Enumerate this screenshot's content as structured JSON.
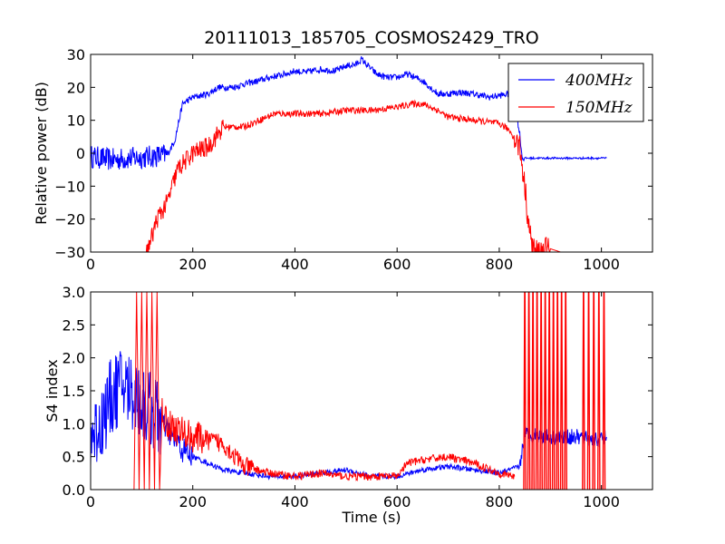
{
  "colors": {
    "series_400": "#0000ff",
    "series_150": "#ff0000",
    "axes": "#000000",
    "background": "#ffffff"
  },
  "chart_data": [
    {
      "type": "line",
      "title": "20111013_185705_COSMOS2429_TRO",
      "xlabel": "",
      "ylabel": "Relative power (dB)",
      "xlim": [
        0,
        1100
      ],
      "ylim": [
        -30,
        30
      ],
      "xticks": [
        "0",
        "200",
        "400",
        "600",
        "800",
        "1000"
      ],
      "yticks": [
        "−30",
        "−20",
        "−10",
        "0",
        "10",
        "20",
        "30"
      ],
      "grid": false,
      "legend": {
        "placement": "top-right",
        "entries": [
          "400MHz",
          "150MHz"
        ]
      },
      "series": [
        {
          "name": "400MHz",
          "color": "#0000ff",
          "noise": [
            [
              0,
              150,
              3.5
            ],
            [
              150,
              850,
              1.0
            ],
            [
              850,
              1010,
              0.3
            ]
          ],
          "x": [
            0,
            40,
            80,
            120,
            150,
            165,
            180,
            200,
            230,
            250,
            280,
            300,
            330,
            350,
            380,
            400,
            420,
            450,
            480,
            500,
            520,
            530,
            540,
            560,
            580,
            600,
            620,
            650,
            680,
            700,
            720,
            750,
            780,
            800,
            820,
            830,
            840,
            845,
            860,
            900,
            950,
            1000,
            1010
          ],
          "values": [
            -1,
            -2,
            -1.5,
            -1,
            -0.5,
            4,
            15,
            17,
            18,
            20,
            20,
            21,
            22,
            23,
            24,
            25,
            24.5,
            25.5,
            25,
            26.5,
            27,
            28.5,
            27,
            24,
            23,
            23,
            24,
            22,
            18,
            18,
            18.5,
            18,
            17,
            17.5,
            18,
            15,
            6,
            -1.5,
            -1.5,
            -1.5,
            -1.5,
            -1.5,
            -1.5
          ]
        },
        {
          "name": "150MHz",
          "color": "#ff0000",
          "noise": [
            [
              110,
              260,
              3.0
            ],
            [
              260,
              830,
              1.0
            ],
            [
              830,
              900,
              4.0
            ]
          ],
          "x": [
            0,
            110,
            115,
            130,
            150,
            170,
            200,
            230,
            260,
            300,
            330,
            360,
            400,
            450,
            500,
            550,
            600,
            630,
            650,
            680,
            700,
            750,
            800,
            820,
            840,
            850,
            860,
            870,
            880,
            900,
            920,
            960,
            1000
          ],
          "values": [
            -30,
            -30,
            -28,
            -20,
            -15,
            -5,
            0,
            2,
            8,
            8,
            10,
            12,
            12,
            12,
            13,
            13,
            14,
            15,
            15,
            13,
            11,
            10,
            9,
            7,
            2,
            -10,
            -25,
            -30,
            -30,
            -29,
            -30,
            -30,
            -30
          ]
        }
      ]
    },
    {
      "type": "line",
      "title": "",
      "xlabel": "Time (s)",
      "ylabel": "S4 index",
      "xlim": [
        0,
        1100
      ],
      "ylim": [
        0,
        3.0
      ],
      "xticks": [
        "0",
        "200",
        "400",
        "600",
        "800",
        "1000"
      ],
      "yticks": [
        "0.0",
        "0.5",
        "1.0",
        "1.5",
        "2.0",
        "2.5",
        "3.0"
      ],
      "grid": false,
      "series": [
        {
          "name": "400MHz",
          "color": "#0000ff",
          "noise": [
            [
              0,
              140,
              0.6
            ],
            [
              140,
              200,
              0.2
            ],
            [
              200,
              840,
              0.04
            ],
            [
              840,
              1010,
              0.12
            ]
          ],
          "x": [
            0,
            20,
            40,
            60,
            80,
            100,
            120,
            140,
            160,
            180,
            200,
            230,
            260,
            300,
            350,
            400,
            450,
            500,
            550,
            600,
            650,
            700,
            750,
            800,
            840,
            850,
            900,
            950,
            1000,
            1010
          ],
          "values": [
            0.8,
            1.0,
            1.4,
            1.6,
            1.5,
            1.3,
            1.2,
            1.0,
            0.8,
            0.6,
            0.5,
            0.4,
            0.3,
            0.25,
            0.2,
            0.2,
            0.25,
            0.3,
            0.2,
            0.2,
            0.3,
            0.35,
            0.3,
            0.25,
            0.35,
            0.85,
            0.8,
            0.8,
            0.75,
            0.8
          ]
        },
        {
          "name": "150MHz",
          "color": "#ff0000",
          "noise": [
            [
              140,
              220,
              0.25
            ],
            [
              220,
              320,
              0.15
            ],
            [
              320,
              830,
              0.06
            ]
          ],
          "x": [
            0,
            85,
            90,
            95,
            100,
            105,
            110,
            115,
            120,
            125,
            130,
            135,
            140,
            150,
            170,
            200,
            230,
            260,
            300,
            350,
            400,
            450,
            500,
            550,
            600,
            620,
            650,
            700,
            750,
            800,
            830
          ],
          "values": [
            0,
            0,
            3,
            0,
            3,
            0,
            3,
            0,
            3,
            0,
            3,
            0,
            1.2,
            1.0,
            0.9,
            0.8,
            0.75,
            0.7,
            0.35,
            0.25,
            0.2,
            0.25,
            0.2,
            0.2,
            0.2,
            0.4,
            0.45,
            0.5,
            0.4,
            0.25,
            0.2
          ],
          "spikes": [
            850,
            858,
            866,
            874,
            882,
            890,
            898,
            906,
            914,
            922,
            930,
            965,
            975,
            985,
            995,
            1005
          ]
        }
      ]
    }
  ]
}
